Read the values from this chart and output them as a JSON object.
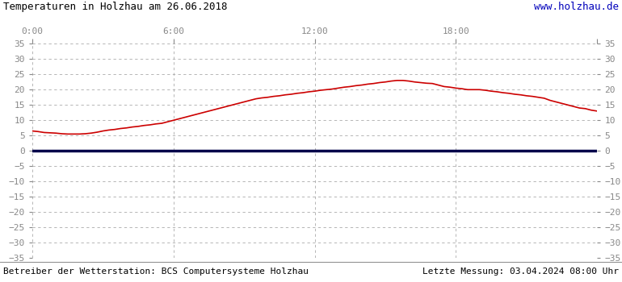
{
  "title": "Temperaturen in Holzhau am 26.06.2018",
  "url_text": "www.holzhau.de",
  "footer_left": "Betreiber der Wetterstation: BCS Computersysteme Holzhau",
  "footer_right": "Letzte Messung: 03.04.2024 08:00 Uhr",
  "x_ticks": [
    0,
    6,
    12,
    18,
    24
  ],
  "x_tick_labels": [
    "0:00",
    "6:00",
    "12:00",
    "18:00",
    ""
  ],
  "y_min": -35,
  "y_max": 35,
  "y_ticks": [
    -35,
    -30,
    -25,
    -20,
    -15,
    -10,
    -5,
    0,
    5,
    10,
    15,
    20,
    25,
    30,
    35
  ],
  "bg_color": "#ffffff",
  "grid_color": "#aaaaaa",
  "line_color": "#cc0000",
  "zero_line_color": "#00004a",
  "title_color": "#000000",
  "url_color": "#0000bb",
  "footer_color": "#000000",
  "temp_x": [
    0.0,
    0.25,
    0.5,
    0.75,
    1.0,
    1.25,
    1.5,
    1.75,
    2.0,
    2.25,
    2.5,
    2.75,
    3.0,
    3.25,
    3.5,
    3.75,
    4.0,
    4.25,
    4.5,
    4.75,
    5.0,
    5.25,
    5.5,
    5.75,
    6.0,
    6.25,
    6.5,
    6.75,
    7.0,
    7.25,
    7.5,
    7.75,
    8.0,
    8.25,
    8.5,
    8.75,
    9.0,
    9.25,
    9.5,
    9.75,
    10.0,
    10.25,
    10.5,
    10.75,
    11.0,
    11.25,
    11.5,
    11.75,
    12.0,
    12.25,
    12.5,
    12.75,
    13.0,
    13.25,
    13.5,
    13.75,
    14.0,
    14.25,
    14.5,
    14.75,
    15.0,
    15.25,
    15.5,
    15.75,
    16.0,
    16.25,
    16.5,
    16.75,
    17.0,
    17.25,
    17.5,
    17.75,
    18.0,
    18.25,
    18.5,
    18.75,
    19.0,
    19.25,
    19.5,
    19.75,
    20.0,
    20.25,
    20.5,
    20.75,
    21.0,
    21.25,
    21.5,
    21.75,
    22.0,
    22.25,
    22.5,
    22.75,
    23.0,
    23.25,
    23.5,
    23.75,
    24.0
  ],
  "temp_y": [
    6.5,
    6.3,
    6.0,
    5.9,
    5.8,
    5.6,
    5.5,
    5.5,
    5.5,
    5.6,
    5.8,
    6.1,
    6.5,
    6.8,
    7.0,
    7.3,
    7.5,
    7.8,
    8.0,
    8.3,
    8.5,
    8.8,
    9.0,
    9.5,
    10.0,
    10.5,
    11.0,
    11.5,
    12.0,
    12.5,
    13.0,
    13.5,
    14.0,
    14.5,
    15.0,
    15.5,
    16.0,
    16.5,
    17.0,
    17.3,
    17.5,
    17.8,
    18.0,
    18.3,
    18.5,
    18.8,
    19.0,
    19.3,
    19.5,
    19.8,
    20.0,
    20.2,
    20.5,
    20.8,
    21.0,
    21.3,
    21.5,
    21.8,
    22.0,
    22.3,
    22.5,
    22.8,
    23.0,
    23.0,
    22.8,
    22.5,
    22.3,
    22.1,
    22.0,
    21.5,
    21.0,
    20.8,
    20.5,
    20.3,
    20.0,
    20.0,
    20.0,
    19.8,
    19.5,
    19.3,
    19.0,
    18.8,
    18.5,
    18.3,
    18.0,
    17.8,
    17.5,
    17.2,
    16.5,
    16.0,
    15.5,
    15.0,
    14.5,
    14.0,
    13.8,
    13.3,
    13.0
  ]
}
